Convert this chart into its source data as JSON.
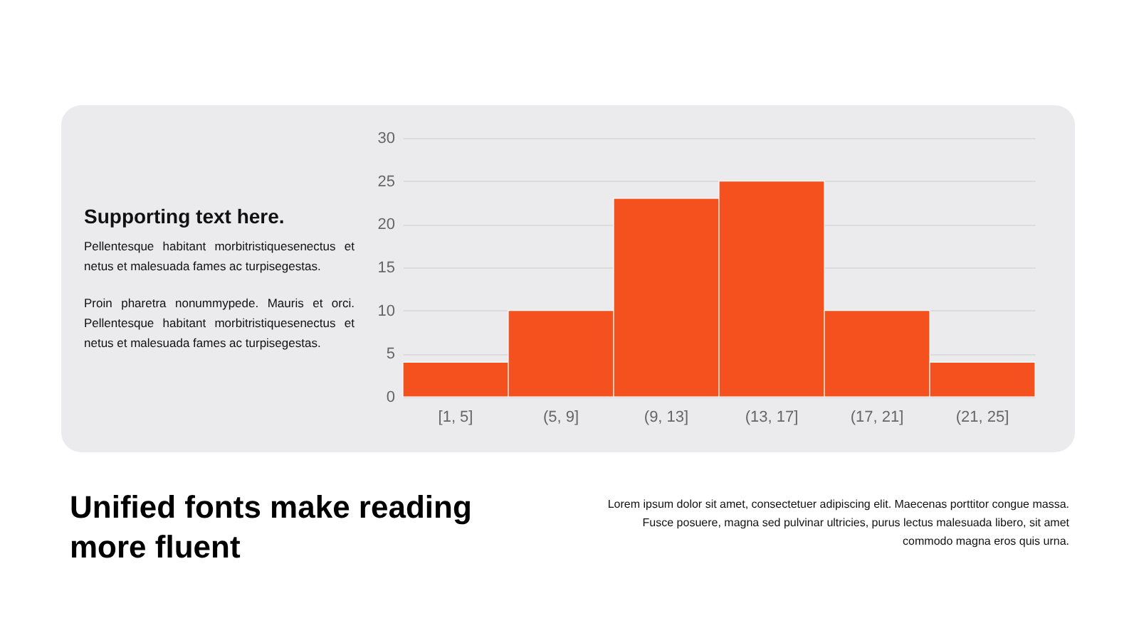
{
  "chart_data": {
    "type": "bar",
    "title": "Unified fonts make reading more fluent",
    "categories": [
      "[1, 5]",
      "(5, 9]",
      "(9, 13]",
      "(13, 17]",
      "(17, 21]",
      "(21, 25]"
    ],
    "values": [
      4,
      10,
      23,
      25,
      10,
      4
    ],
    "color": "#f4511e",
    "ylim": [
      0,
      30
    ],
    "yticks": [
      0,
      5,
      10,
      15,
      20,
      25,
      30
    ],
    "grid": "y",
    "annotations": [
      "Supporting text here.",
      "Pellentesque habitant morbitristiquesenectus et netus et malesuada fames ac turpisegestas.",
      "Proin pharetra nonummypede. Mauris et orci. Pellentesque habitant morbitristiquesenectus et netus et malesuada fames ac turpisegestas.",
      "Lorem ipsum dolor sit amet, consectetuer adipiscing elit. Maecenas porttitor congue massa.",
      "Fusce posuere, magna sed pulvinar ultricies, purus lectus malesuada libero, sit amet commodo magna eros quis urna."
    ]
  }
}
